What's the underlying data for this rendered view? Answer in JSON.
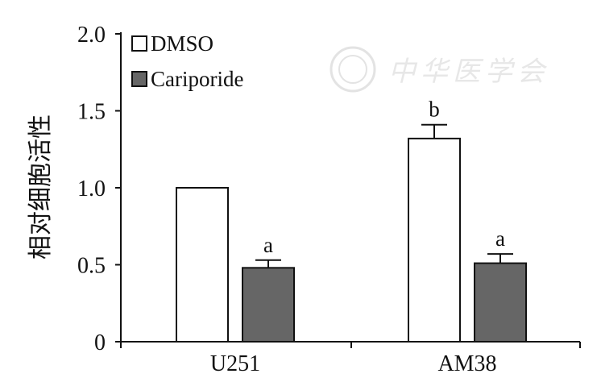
{
  "chart_data": {
    "type": "bar",
    "categories": [
      "U251",
      "AM38"
    ],
    "ylabel": "相对细胞活性",
    "ylim": [
      0,
      2.0
    ],
    "yticks": [
      "0",
      "0.5",
      "1.0",
      "1.5",
      "2.0"
    ],
    "series": [
      {
        "name": "DMSO",
        "values": [
          1.0,
          1.32
        ],
        "errors": [
          0,
          0.09
        ],
        "annotations": [
          "",
          "b"
        ],
        "color": "#ffffff"
      },
      {
        "name": "Cariporide",
        "values": [
          0.48,
          0.51
        ],
        "errors": [
          0.05,
          0.06
        ],
        "annotations": [
          "a",
          "a"
        ],
        "color": "#666666"
      }
    ],
    "legend_position": "top-left",
    "grid": false
  },
  "watermark": {
    "text": "中华医学会"
  }
}
